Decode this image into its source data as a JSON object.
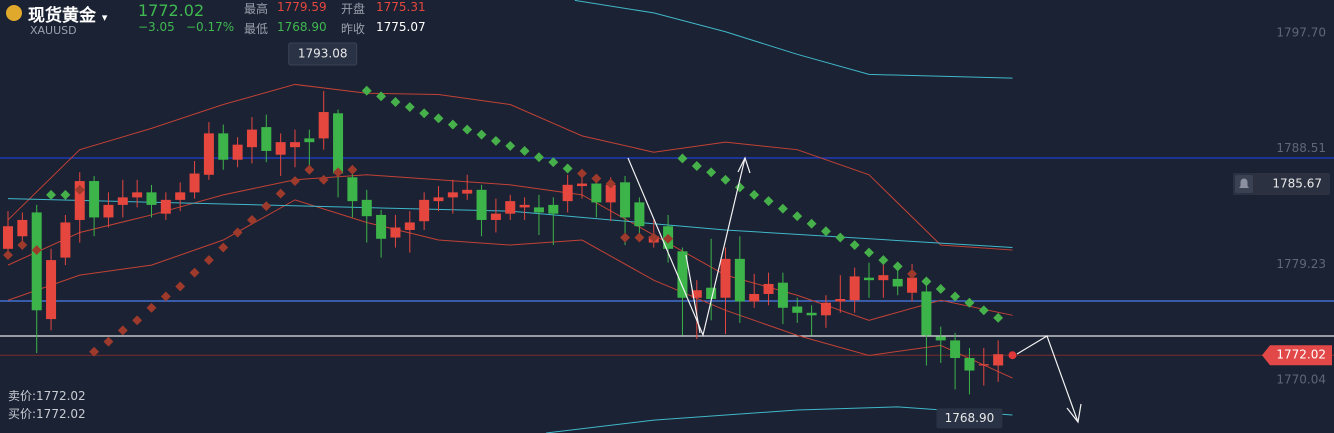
{
  "header": {
    "name": "现货黄金",
    "symbol": "XAUUSD",
    "price": "1772.02",
    "change": "−3.05",
    "change_pct": "−0.17%",
    "stats": [
      {
        "label": "最高",
        "value": "1779.59"
      },
      {
        "label": "开盘",
        "value": "1775.31"
      },
      {
        "label": "最低",
        "value": "1768.90"
      },
      {
        "label": "昨收",
        "value": "1775.07"
      }
    ]
  },
  "footer": {
    "bid": "卖价:1772.02",
    "ask": "买价:1772.02"
  },
  "chart_data": {
    "type": "candlestick",
    "up_color": "#e5473f",
    "down_color": "#3db44a",
    "open": [
      1780.5,
      1781.5,
      1783.4,
      1774.9,
      1779.8,
      1782.8,
      1785.9,
      1783,
      1784,
      1784.6,
      1785,
      1783.3,
      1784.4,
      1785,
      1786.4,
      1789.7,
      1787.6,
      1788.6,
      1790.2,
      1788,
      1788.6,
      1789.3,
      1789.3,
      1791.3,
      1786.2,
      1784.4,
      1783.2,
      1781.4,
      1782,
      1782.7,
      1784.3,
      1784.6,
      1784.9,
      1785.2,
      1782.8,
      1783.3,
      1783.8,
      1783.8,
      1784,
      1784.3,
      1785.5,
      1785.7,
      1784.2,
      1785.8,
      1784.2,
      1781,
      1782.3,
      1780.3,
      1776.6,
      1777.4,
      1776.6,
      1779.7,
      1776.3,
      1776.9,
      1777.8,
      1775.9,
      1775.4,
      1775.2,
      1776.3,
      1776.4,
      1778.2,
      1778,
      1778.1,
      1777,
      1777.1,
      1773.5,
      1773.2,
      1771.8,
      1771.2,
      1771.2
    ],
    "close": [
      1782.3,
      1782.8,
      1775.6,
      1779.6,
      1782.6,
      1785.9,
      1783,
      1784,
      1784.6,
      1785,
      1784,
      1784.4,
      1785,
      1786.5,
      1789.7,
      1787.6,
      1788.8,
      1790,
      1788.3,
      1789,
      1789,
      1789,
      1791.4,
      1786.5,
      1784.3,
      1783.1,
      1781.3,
      1782.2,
      1782.6,
      1784.4,
      1784.6,
      1785,
      1785.2,
      1782.8,
      1783.3,
      1784.3,
      1784,
      1783.4,
      1783.3,
      1785.6,
      1785.7,
      1784.2,
      1785.6,
      1783,
      1782.3,
      1781.5,
      1780.5,
      1776.6,
      1777.2,
      1776.5,
      1779.7,
      1776.3,
      1776.9,
      1777.7,
      1775.8,
      1775.4,
      1775.2,
      1776.2,
      1776.5,
      1778.3,
      1778,
      1778.4,
      1777.5,
      1778.2,
      1773.6,
      1773.2,
      1771.8,
      1770.8,
      1771.3,
      1772.1
    ],
    "high": [
      1783.5,
      1783.4,
      1784,
      1780.5,
      1783.2,
      1786.6,
      1786.3,
      1785,
      1786,
      1786,
      1785.6,
      1785,
      1785.8,
      1787.5,
      1790.6,
      1790.4,
      1789.4,
      1791,
      1791.2,
      1789.7,
      1790,
      1790,
      1793.08,
      1791.6,
      1786.8,
      1785.2,
      1783.6,
      1783.2,
      1783.5,
      1785,
      1785.5,
      1786,
      1786.4,
      1785.6,
      1784.5,
      1784.8,
      1784.6,
      1784.8,
      1784.6,
      1786.4,
      1786.5,
      1786.4,
      1786.2,
      1786.3,
      1784.6,
      1782.8,
      1783.2,
      1780.6,
      1778,
      1781.3,
      1780.6,
      1781.5,
      1778.5,
      1778.6,
      1778.6,
      1776.6,
      1776,
      1776.8,
      1778.4,
      1779,
      1779.4,
      1779.3,
      1778.8,
      1779.3,
      1777.8,
      1774.3,
      1773.8,
      1772.6,
      1772.6,
      1773.2
    ],
    "low": [
      1779.8,
      1780.6,
      1772.2,
      1774,
      1779.2,
      1781,
      1781.5,
      1782.2,
      1783,
      1783.8,
      1783,
      1782.8,
      1783.5,
      1784.5,
      1786,
      1786.8,
      1787,
      1787.3,
      1787.4,
      1786.3,
      1787,
      1786.5,
      1788.4,
      1784.6,
      1783,
      1781,
      1779.8,
      1780.6,
      1780.2,
      1782,
      1783.5,
      1783.3,
      1784.4,
      1781.5,
      1781.8,
      1782.8,
      1782.8,
      1781.6,
      1780.8,
      1783.4,
      1784.5,
      1783,
      1782.7,
      1780.8,
      1781.5,
      1780.6,
      1779.4,
      1773.6,
      1773.3,
      1774.8,
      1773.7,
      1774.6,
      1775.8,
      1776,
      1774.5,
      1774.6,
      1773.6,
      1774.2,
      1775.4,
      1775.4,
      1776.6,
      1776.6,
      1776.8,
      1776.3,
      1771.2,
      1771.4,
      1769.3,
      1768.9,
      1769.6,
      1769.9
    ],
    "sar": [
      1780,
      1780.8,
      1780.4,
      1784.8,
      1784.8,
      1785.2,
      1772.3,
      1773.1,
      1774,
      1774.8,
      1775.8,
      1776.7,
      1777.5,
      1778.6,
      1779.6,
      1780.6,
      1781.8,
      1782.8,
      1783.9,
      1784.9,
      1785.9,
      1786.8,
      1786,
      1786.6,
      1786.8,
      1793.1,
      1792.65,
      1792.2,
      1791.8,
      1791.3,
      1790.9,
      1790.4,
      1790,
      1789.6,
      1789.1,
      1788.7,
      1788.3,
      1787.8,
      1787.4,
      1786.9,
      1786.5,
      1786.1,
      1785.7,
      1781.4,
      1781.4,
      1781.4,
      1781.3,
      1787.7,
      1787.1,
      1786.6,
      1786,
      1785.4,
      1784.8,
      1784.3,
      1783.7,
      1783.1,
      1782.5,
      1781.9,
      1781.4,
      1780.8,
      1780.2,
      1779.6,
      1779.1,
      1778.5,
      1777.9,
      1777.3,
      1776.7,
      1776.2,
      1775.6,
      1775
    ],
    "sar_colors": {
      "above": "#46b04a",
      "below": "#9e3a2c"
    },
    "lines": [
      {
        "color": "#c24236",
        "x": [
          0,
          5,
          10,
          15,
          20,
          25,
          30,
          35,
          40,
          45,
          50,
          55,
          60,
          65,
          70
        ],
        "values": [
          1782.8,
          1788.4,
          1790.1,
          1792,
          1793.6,
          1792.9,
          1792.8,
          1792,
          1789.5,
          1788.2,
          1789,
          1788.4,
          1786.4,
          1780.8,
          1780.4
        ]
      },
      {
        "color": "#c24236",
        "x": [
          0,
          5,
          10,
          15,
          20,
          25,
          30,
          35,
          40,
          45,
          50,
          55,
          60,
          65,
          70
        ],
        "values": [
          1779.2,
          1781.8,
          1783.2,
          1784.8,
          1786,
          1786.4,
          1786,
          1785.6,
          1784.8,
          1781.6,
          1778.4,
          1776.8,
          1774.8,
          1776.4,
          1775.2
        ]
      },
      {
        "color": "#c24236",
        "x": [
          0,
          5,
          10,
          15,
          20,
          25,
          30,
          35,
          40,
          45,
          50,
          55,
          60,
          65,
          70
        ],
        "values": [
          1776.4,
          1778.4,
          1779.2,
          1781.2,
          1784.4,
          1782.6,
          1781.2,
          1780.8,
          1781.2,
          1778,
          1775.6,
          1773.6,
          1772,
          1772.8,
          1770.2
        ]
      },
      {
        "color": "#3fb8c9",
        "x": [
          0,
          35,
          50,
          70
        ],
        "values": [
          1784.5,
          1783.5,
          1782,
          1780.6
        ]
      },
      {
        "color": "#3fb8c9",
        "x": [
          39.5,
          45,
          50,
          55,
          60,
          70
        ],
        "values": [
          1800.3,
          1799.3,
          1797.8,
          1796,
          1794.4,
          1794.1
        ]
      },
      {
        "color": "#3fb8c9",
        "x": [
          37.5,
          45,
          55,
          62,
          70
        ],
        "values": [
          1765.82,
          1766.85,
          1767.65,
          1767.9,
          1767.25
        ]
      }
    ],
    "hlines": [
      {
        "value": 1787.74,
        "color": "#1f3fcf"
      },
      {
        "value": 1776.34,
        "color": "#4a80f0"
      },
      {
        "value": 1773.55,
        "color": "#e6e6e6"
      }
    ],
    "ylim": [
      1765.82,
      1800.33
    ],
    "yticks": [
      {
        "value": 1797.7,
        "label": "1797.70"
      },
      1788.51,
      1779.23,
      1770.04
    ],
    "high_mark": 1793.08,
    "low_mark": {
      "value": 1768.9,
      "label": "1768.90"
    },
    "last_price": 1772.02,
    "alert": 1785.67
  }
}
